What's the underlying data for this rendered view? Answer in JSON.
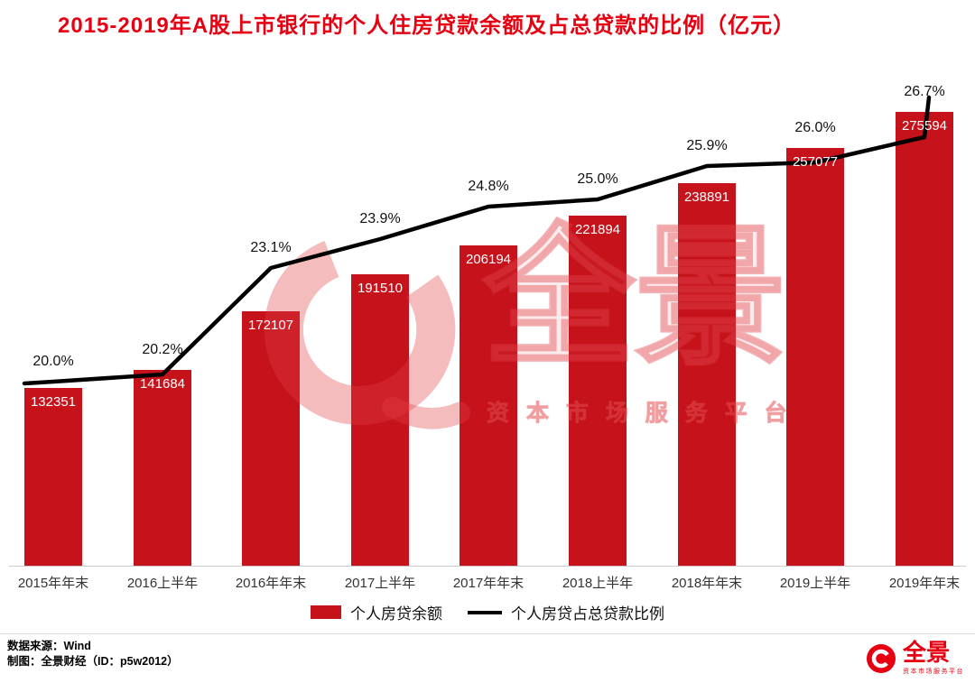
{
  "title": "2015-2019年A股上市银行的个人住房贷款余额及占总贷款的比例（亿元）",
  "colors": {
    "bar_red": "#c5121b",
    "brand_red": "#e60012",
    "line_black": "#000000"
  },
  "chart_data": {
    "type": "bar",
    "title": "2015-2019年A股上市银行的个人住房贷款余额及占总贷款的比例（亿元）",
    "categories": [
      "2015年年末",
      "2016上半年",
      "2016年年末",
      "2017上半年",
      "2017年年末",
      "2018上半年",
      "2018年年末",
      "2019上半年",
      "2019年年末"
    ],
    "series": [
      {
        "name": "个人房贷余额",
        "type": "bar",
        "color": "#c5121b",
        "values": [
          132351,
          141684,
          172107,
          191510,
          206194,
          221894,
          238891,
          257077,
          275594
        ]
      },
      {
        "name": "个人房贷占总贷款比例",
        "type": "line",
        "color": "#000000",
        "unit": "%",
        "values": [
          20.0,
          20.2,
          23.1,
          23.9,
          24.8,
          25.0,
          25.9,
          26.0,
          26.7
        ]
      }
    ],
    "xlabel": "",
    "ylabel": "",
    "grid": false,
    "legend_position": "bottom",
    "value_labels_shown": true
  },
  "watermark": {
    "main": "全景",
    "sub": "资 本 市 场 服 务 平 台"
  },
  "footer": {
    "source": "数据来源：Wind",
    "credit": "制图：全景财经（ID：p5w2012）",
    "brand_name": "全景",
    "brand_tagline": "资本市场服务平台"
  }
}
